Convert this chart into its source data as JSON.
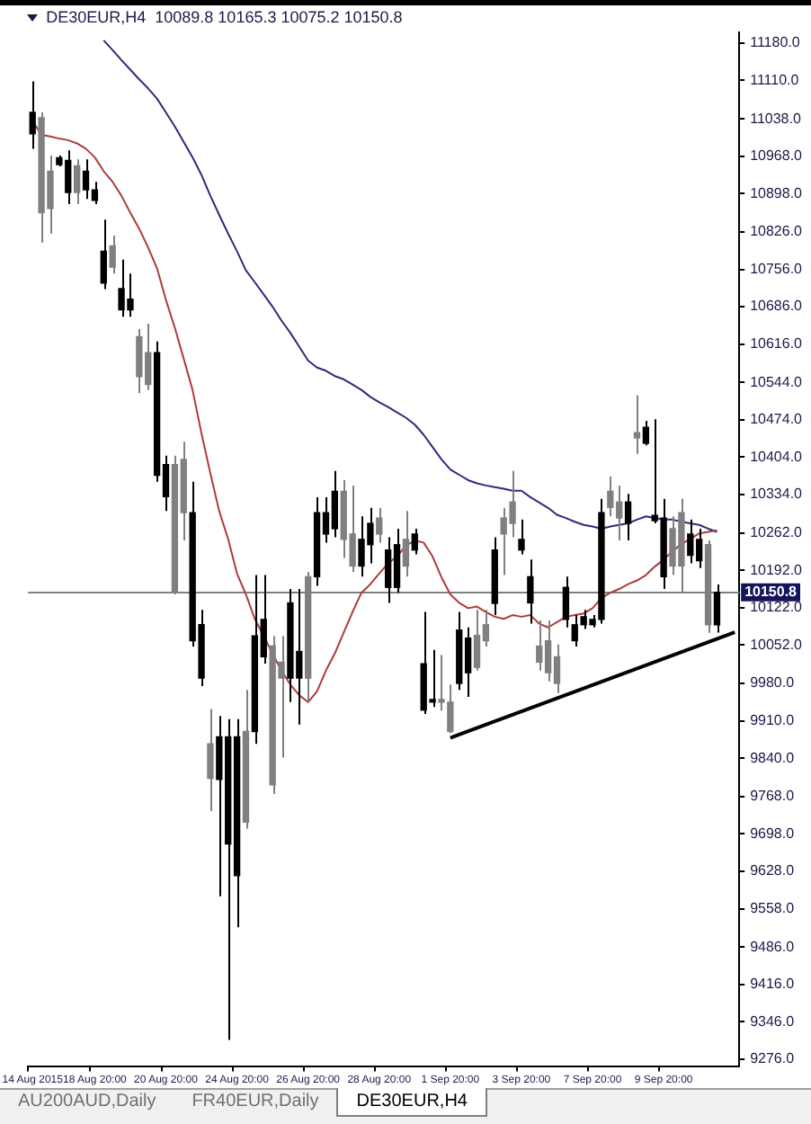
{
  "chart_data": {
    "type": "candlestick",
    "title": "DE30EUR,H4  10089.8 10165.3 10075.2 10150.8",
    "categories": [
      "14 Aug 2015",
      null,
      null,
      null,
      null,
      null,
      null,
      "18 Aug 20:00",
      null,
      null,
      null,
      null,
      null,
      null,
      null,
      "20 Aug 20:00",
      null,
      null,
      null,
      null,
      null,
      null,
      null,
      "24 Aug 20:00",
      null,
      null,
      null,
      null,
      null,
      null,
      null,
      "26 Aug 20:00",
      null,
      null,
      null,
      null,
      null,
      null,
      null,
      "28 Aug 20:00",
      null,
      null,
      null,
      null,
      null,
      null,
      null,
      "1 Sep 20:00",
      null,
      null,
      null,
      null,
      null,
      null,
      null,
      "3 Sep 20:00",
      null,
      null,
      null,
      null,
      null,
      null,
      null,
      "7 Sep 20:00",
      null,
      null,
      null,
      null,
      null,
      null,
      null,
      "9 Sep 20:00",
      null,
      null,
      null,
      null,
      null,
      null,
      null,
      null
    ],
    "series": [
      {
        "type": "candlestick",
        "ohlc": [
          [
            11010,
            11108,
            10982,
            11050
          ],
          [
            11040,
            11050,
            10806,
            10862
          ],
          [
            10940,
            10969,
            10823,
            10870
          ],
          [
            10952,
            10969,
            10949,
            10965
          ],
          [
            10900,
            10979,
            10878,
            10960
          ],
          [
            10950,
            10962,
            10878,
            10900
          ],
          [
            10905,
            10962,
            10888,
            10940
          ],
          [
            10885,
            10920,
            10878,
            10905
          ],
          [
            10730,
            10849,
            10719,
            10790
          ],
          [
            10800,
            10819,
            10748,
            10760
          ],
          [
            10680,
            10774,
            10667,
            10720
          ],
          [
            10680,
            10748,
            10667,
            10700
          ],
          [
            10630,
            10644,
            10524,
            10555
          ],
          [
            10600,
            10654,
            10530,
            10540
          ],
          [
            10370,
            10621,
            10358,
            10600
          ],
          [
            10330,
            10407,
            10303,
            10390
          ],
          [
            10390,
            10407,
            10147,
            10150
          ],
          [
            10400,
            10433,
            10248,
            10300
          ],
          [
            10060,
            10358,
            10049,
            10300
          ],
          [
            9990,
            10118,
            9975,
            10090
          ],
          [
            9867,
            9932,
            9741,
            9802
          ],
          [
            9800,
            9919,
            9581,
            9880
          ],
          [
            9679,
            9913,
            9312,
            9880
          ],
          [
            9620,
            9913,
            9523,
            9880
          ],
          [
            9890,
            9968,
            9708,
            9720
          ],
          [
            9890,
            10183,
            9867,
            10069
          ],
          [
            10030,
            10183,
            10017,
            10100
          ],
          [
            10050,
            10069,
            9773,
            9790
          ],
          [
            10020,
            10069,
            9841,
            9990
          ],
          [
            9990,
            10157,
            9945,
            10131
          ],
          [
            9990,
            10157,
            9903,
            10040
          ],
          [
            10180,
            10189,
            9945,
            9990
          ],
          [
            10180,
            10329,
            10163,
            10300
          ],
          [
            10260,
            10329,
            10244,
            10300
          ],
          [
            10270,
            10378,
            10254,
            10340
          ],
          [
            10340,
            10361,
            10215,
            10250
          ],
          [
            10260,
            10351,
            10189,
            10200
          ],
          [
            10200,
            10293,
            10180,
            10250
          ],
          [
            10240,
            10309,
            10205,
            10280
          ],
          [
            10290,
            10309,
            10244,
            10260
          ],
          [
            10160,
            10254,
            10131,
            10230
          ],
          [
            10160,
            10270,
            10150,
            10240
          ],
          [
            10250,
            10303,
            10180,
            10200
          ],
          [
            10230,
            10270,
            10222,
            10260
          ],
          [
            9930,
            10114,
            9923,
            10017
          ],
          [
            9945,
            10043,
            9936,
            9950
          ],
          [
            9950,
            10033,
            9929,
            9945
          ],
          [
            9945,
            9978,
            9887,
            9890
          ],
          [
            9980,
            10114,
            9968,
            10080
          ],
          [
            10000,
            10085,
            9955,
            10065
          ],
          [
            10070,
            10118,
            10004,
            10010
          ],
          [
            10090,
            10118,
            10049,
            10060
          ],
          [
            10130,
            10254,
            10108,
            10230
          ],
          [
            10290,
            10309,
            10183,
            10260
          ],
          [
            10320,
            10378,
            10254,
            10280
          ],
          [
            10230,
            10287,
            10222,
            10250
          ],
          [
            10131,
            10212,
            10092,
            10180
          ],
          [
            10050,
            10098,
            10004,
            10020
          ],
          [
            10060,
            10098,
            9984,
            10000
          ],
          [
            10030,
            10053,
            9962,
            9980
          ],
          [
            10100,
            10180,
            10085,
            10160
          ],
          [
            10060,
            10108,
            10049,
            10090
          ],
          [
            10090,
            10118,
            10082,
            10105
          ],
          [
            10090,
            10108,
            10085,
            10100
          ],
          [
            10100,
            10326,
            10092,
            10300
          ],
          [
            10340,
            10368,
            10293,
            10310
          ],
          [
            10320,
            10351,
            10248,
            10290
          ],
          [
            10280,
            10335,
            10248,
            10320
          ],
          [
            10450,
            10520,
            10410,
            10440
          ],
          [
            10430,
            10472,
            10426,
            10460
          ],
          [
            10285,
            10475,
            10280,
            10295
          ],
          [
            10180,
            10326,
            10157,
            10290
          ],
          [
            10270,
            10293,
            10183,
            10200
          ],
          [
            10300,
            10326,
            10150,
            10200
          ],
          [
            10220,
            10287,
            10205,
            10260
          ],
          [
            10210,
            10270,
            10196,
            10250
          ],
          [
            10240,
            10248,
            10075,
            10089.8
          ],
          [
            10089.8,
            10165.3,
            10075.2,
            10150.8
          ],
          null,
          null
        ],
        "colors": [
          "#000000",
          "#808080",
          "#808080",
          "#000000",
          "#000000",
          "#808080",
          "#000000",
          "#000000",
          "#000000",
          "#808080",
          "#000000",
          "#000000",
          "#808080",
          "#808080",
          "#000000",
          "#000000",
          "#808080",
          "#808080",
          "#000000",
          "#000000",
          "#808080",
          "#000000",
          "#000000",
          "#000000",
          "#808080",
          "#000000",
          "#000000",
          "#808080",
          "#808080",
          "#000000",
          "#000000",
          "#808080",
          "#000000",
          "#000000",
          "#000000",
          "#808080",
          "#808080",
          "#000000",
          "#000000",
          "#808080",
          "#000000",
          "#000000",
          "#808080",
          "#000000",
          "#000000",
          "#000000",
          "#808080",
          "#808080",
          "#000000",
          "#000000",
          "#808080",
          "#808080",
          "#000000",
          "#808080",
          "#808080",
          "#000000",
          "#000000",
          "#808080",
          "#808080",
          "#808080",
          "#000000",
          "#000000",
          "#000000",
          "#000000",
          "#000000",
          "#808080",
          "#808080",
          "#000000",
          "#808080",
          "#000000",
          "#000000",
          "#000000",
          "#808080",
          "#808080",
          "#000000",
          "#000000",
          "#808080",
          "#000000",
          null,
          null
        ]
      },
      {
        "type": "line",
        "color": "#b03a3a",
        "values": [
          11034,
          11008,
          11005,
          11001,
          10998,
          10992,
          10982,
          10966,
          10940,
          10920,
          10894,
          10862,
          10832,
          10797,
          10758,
          10699,
          10647,
          10589,
          10530,
          10449,
          10374,
          10303,
          10251,
          10186,
          10147,
          10101,
          10069,
          10036,
          10004,
          9978,
          9958,
          9945,
          9965,
          10004,
          10036,
          10075,
          10114,
          10150,
          10166,
          10186,
          10205,
          10218,
          10238,
          10248,
          10244,
          10218,
          10179,
          10147,
          10131,
          10121,
          10124,
          10114,
          10105,
          10101,
          10108,
          10105,
          10108,
          10092,
          10085,
          10095,
          10105,
          10108,
          10111,
          10121,
          10140,
          10150,
          10157,
          10166,
          10173,
          10183,
          10199,
          10212,
          10228,
          10241,
          10251,
          10261,
          10264,
          10267,
          null,
          null
        ]
      },
      {
        "type": "line",
        "color": "#2b2b80",
        "values": [
          null,
          null,
          null,
          null,
          null,
          null,
          null,
          null,
          11185,
          11167,
          11148,
          11130,
          11112,
          11095,
          11076,
          11050,
          11024,
          10995,
          10966,
          10933,
          10894,
          10858,
          10823,
          10790,
          10754,
          10732,
          10709,
          10686,
          10660,
          10637,
          10611,
          10585,
          10572,
          10566,
          10556,
          10550,
          10540,
          10530,
          10517,
          10507,
          10498,
          10488,
          10478,
          10465,
          10446,
          10423,
          10400,
          10381,
          10371,
          10361,
          10355,
          10351,
          10348,
          10345,
          10341,
          10341,
          10329,
          10319,
          10309,
          10296,
          10290,
          10283,
          10277,
          10274,
          10270,
          10274,
          10277,
          10280,
          10287,
          10293,
          10290,
          10287,
          10287,
          10283,
          10280,
          10277,
          10270,
          10264,
          null,
          null
        ]
      },
      {
        "type": "line",
        "color": "#000000",
        "values": [
          null,
          null,
          null,
          null,
          null,
          null,
          null,
          null,
          null,
          null,
          null,
          null,
          null,
          null,
          null,
          null,
          null,
          null,
          null,
          null,
          null,
          null,
          null,
          null,
          null,
          null,
          null,
          null,
          null,
          null,
          null,
          null,
          null,
          null,
          null,
          null,
          null,
          null,
          null,
          null,
          null,
          null,
          null,
          null,
          null,
          null,
          null,
          9878,
          null,
          null,
          null,
          null,
          null,
          null,
          null,
          null,
          null,
          null,
          null,
          null,
          null,
          null,
          null,
          null,
          null,
          null,
          null,
          null,
          null,
          null,
          null,
          null,
          null,
          null,
          null,
          null,
          null,
          null,
          null,
          10076
        ]
      }
    ],
    "ylim": [
      9263,
      11200
    ],
    "yticks": [
      {
        "value": 11180,
        "label": "11180.0"
      },
      {
        "value": 11110,
        "label": "11110.0"
      },
      {
        "value": 11038,
        "label": "11038.0"
      },
      {
        "value": 10968,
        "label": "10968.0"
      },
      {
        "value": 10898,
        "label": "10898.0"
      },
      {
        "value": 10826,
        "label": "10826.0"
      },
      {
        "value": 10756,
        "label": "10756.0"
      },
      {
        "value": 10686,
        "label": "10686.0"
      },
      {
        "value": 10616,
        "label": "10616.0"
      },
      {
        "value": 10544,
        "label": "10544.0"
      },
      {
        "value": 10474,
        "label": "10474.0"
      },
      {
        "value": 10404,
        "label": "10404.0"
      },
      {
        "value": 10334,
        "label": "10334.0"
      },
      {
        "value": 10262,
        "label": "10262.0"
      },
      {
        "value": 10192,
        "label": "10192.0"
      },
      {
        "value": 10122,
        "label": "10122.0"
      },
      {
        "value": 10052,
        "label": "10052.0"
      },
      {
        "value": 9980,
        "label": "9980.0"
      },
      {
        "value": 9910,
        "label": "9910.0"
      },
      {
        "value": 9840,
        "label": "9840.0"
      },
      {
        "value": 9768,
        "label": "9768.0"
      },
      {
        "value": 9698,
        "label": "9698.0"
      },
      {
        "value": 9628,
        "label": "9628.0"
      },
      {
        "value": 9558,
        "label": "9558.0"
      },
      {
        "value": 9486,
        "label": "9486.0"
      },
      {
        "value": 9416,
        "label": "9416.0"
      },
      {
        "value": 9346,
        "label": "9346.0"
      },
      {
        "value": 9276,
        "label": "9276.0"
      }
    ],
    "ref_lines": [
      {
        "axis": "y",
        "value": 10150.8,
        "label": "10150.8",
        "color": "#808080"
      }
    ],
    "annotations": [
      "AU200AUD,Daily",
      "FR40EUR,Daily",
      "DE30EUR,H4"
    ],
    "legend": false,
    "grid": false
  }
}
